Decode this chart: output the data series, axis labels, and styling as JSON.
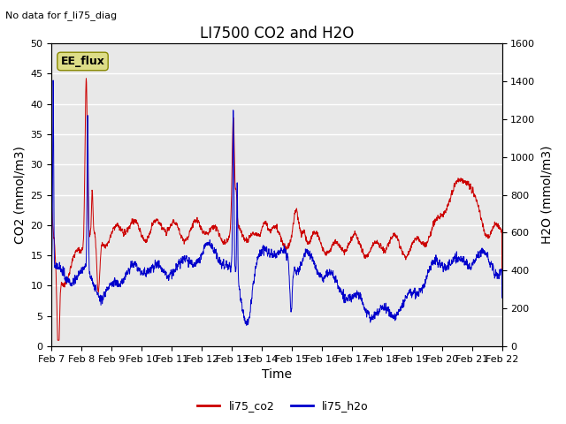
{
  "title": "LI7500 CO2 and H2O",
  "top_left_text": "No data for f_li75_diag",
  "xlabel": "Time",
  "ylabel_left": "CO2 (mmol/m3)",
  "ylabel_right": "H2O (mmol/m3)",
  "ylim_left": [
    0,
    50
  ],
  "ylim_right": [
    0,
    1600
  ],
  "yticks_left": [
    0,
    5,
    10,
    15,
    20,
    25,
    30,
    35,
    40,
    45,
    50
  ],
  "yticks_right": [
    0,
    200,
    400,
    600,
    800,
    1000,
    1200,
    1400,
    1600
  ],
  "xtick_labels": [
    "Feb 7",
    "Feb 8",
    "Feb 9",
    "Feb 10",
    "Feb 11",
    "Feb 12",
    "Feb 13",
    "Feb 14",
    "Feb 15",
    "Feb 16",
    "Feb 17",
    "Feb 18",
    "Feb 19",
    "Feb 20",
    "Feb 21",
    "Feb 22"
  ],
  "color_co2": "#cc0000",
  "color_h2o": "#0000cc",
  "legend_label_co2": "li75_co2",
  "legend_label_h2o": "li75_h2o",
  "annotation_box_text": "EE_flux",
  "annotation_box_color": "#dddd88",
  "plot_bg_color": "#e8e8e8",
  "grid_color": "#ffffff",
  "title_fontsize": 12,
  "axis_label_fontsize": 10,
  "tick_fontsize": 8,
  "legend_fontsize": 9
}
